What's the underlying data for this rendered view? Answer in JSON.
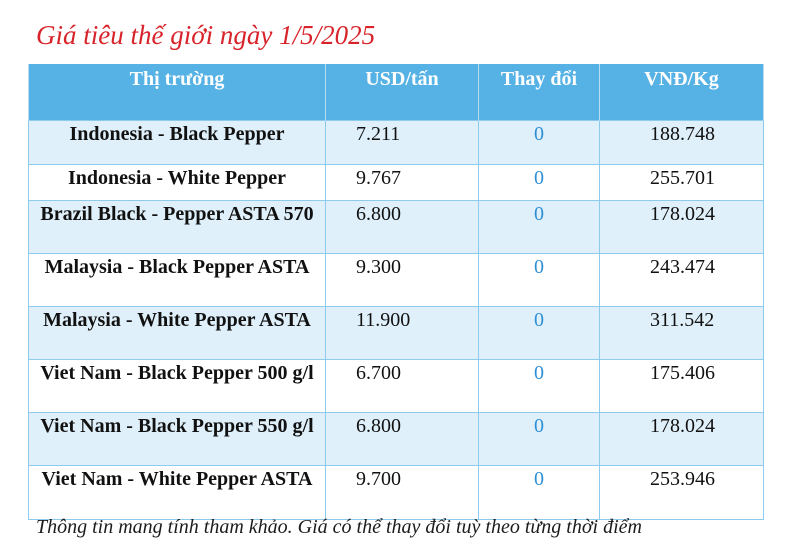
{
  "title": "Giá tiêu thế giới ngày 1/5/2025",
  "table": {
    "headers": [
      "Thị trường",
      "USD/tấn",
      "Thay đổi",
      "VNĐ/Kg"
    ],
    "rows": [
      {
        "market": "Indonesia - Black Pepper",
        "usd": "7.211",
        "change": "0",
        "vnd": "188.748"
      },
      {
        "market": "Indonesia - White Pepper",
        "usd": "9.767",
        "change": "0",
        "vnd": "255.701"
      },
      {
        "market": "Brazil Black - Pepper ASTA 570",
        "usd": "6.800",
        "change": "0",
        "vnd": "178.024"
      },
      {
        "market": "Malaysia - Black Pepper ASTA",
        "usd": "9.300",
        "change": "0",
        "vnd": "243.474"
      },
      {
        "market": "Malaysia - White Pepper ASTA",
        "usd": "11.900",
        "change": "0",
        "vnd": "311.542"
      },
      {
        "market": "Viet Nam - Black Pepper 500 g/l",
        "usd": "6.700",
        "change": "0",
        "vnd": "175.406"
      },
      {
        "market": "Viet Nam - Black Pepper 550 g/l",
        "usd": "6.800",
        "change": "0",
        "vnd": "178.024"
      },
      {
        "market": "Viet Nam - White Pepper ASTA",
        "usd": "9.700",
        "change": "0",
        "vnd": "253.946"
      }
    ]
  },
  "note": "Thông tin mang tính tham khảo. Giá có thể thay đổi tuỳ theo từng thời điểm"
}
